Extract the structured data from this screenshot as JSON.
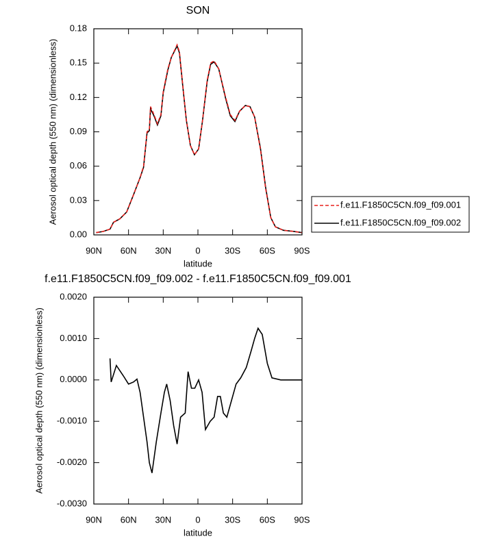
{
  "chart_data": [
    {
      "type": "line",
      "title": "SON",
      "xlabel": "latitude",
      "ylabel": "Aerosol optical depth (550 nm) (dimensionless)",
      "x": [
        88,
        82,
        76,
        73,
        67.5,
        61.6,
        55.7,
        50,
        47,
        44,
        42,
        41,
        38,
        35,
        32,
        30,
        26,
        23,
        18,
        16,
        13,
        10,
        6.5,
        3,
        -0.6,
        -4,
        -8,
        -11,
        -14,
        -18,
        -24,
        -28,
        -32,
        -36,
        -41,
        -45,
        -49,
        -54,
        -58.6,
        -63,
        -67,
        -74,
        -83,
        -90
      ],
      "series": [
        {
          "name": "f.e11.F1850C5CN.f09_f09.001",
          "color": "#e8201c",
          "dashed": true,
          "values": [
            0.002,
            0.003,
            0.005,
            0.011,
            0.014,
            0.02,
            0.035,
            0.05,
            0.06,
            0.09,
            0.092,
            0.112,
            0.105,
            0.097,
            0.105,
            0.125,
            0.145,
            0.155,
            0.166,
            0.16,
            0.13,
            0.1,
            0.078,
            0.07,
            0.075,
            0.1,
            0.135,
            0.15,
            0.152,
            0.145,
            0.12,
            0.105,
            0.1,
            0.108,
            0.113,
            0.112,
            0.103,
            0.075,
            0.04,
            0.015,
            0.007,
            0.004,
            0.003,
            0.002
          ]
        },
        {
          "name": "f.e11.F1850C5CN.f09_f09.002",
          "color": "#000000",
          "dashed": false,
          "values": [
            0.002,
            0.003,
            0.005,
            0.011,
            0.014,
            0.02,
            0.035,
            0.05,
            0.059,
            0.089,
            0.091,
            0.11,
            0.104,
            0.096,
            0.104,
            0.124,
            0.144,
            0.155,
            0.165,
            0.159,
            0.129,
            0.1,
            0.078,
            0.07,
            0.075,
            0.1,
            0.134,
            0.149,
            0.151,
            0.145,
            0.119,
            0.104,
            0.099,
            0.108,
            0.113,
            0.112,
            0.103,
            0.076,
            0.041,
            0.015,
            0.007,
            0.004,
            0.003,
            0.002
          ]
        }
      ],
      "xlim": [
        90,
        -90
      ],
      "xticks": [
        {
          "value": 90,
          "label": "90N"
        },
        {
          "value": 60,
          "label": "60N"
        },
        {
          "value": 30,
          "label": "30N"
        },
        0,
        {
          "value": -30,
          "label": "30S"
        },
        {
          "value": -60,
          "label": "60S"
        },
        {
          "value": -90,
          "label": "90S"
        }
      ],
      "ylim": [
        0,
        0.18
      ],
      "yticks": [
        {
          "value": 0,
          "label": "0.00"
        },
        0.03,
        0.06,
        0.09,
        0.12,
        0.15,
        0.18
      ],
      "legend": "right"
    },
    {
      "type": "line",
      "title": "f.e11.F1850C5CN.f09_f09.002 - f.e11.F1850C5CN.f09_f09.001",
      "xlabel": "latitude",
      "ylabel": "Aerosol optical depth (550 nm) (dimensionless)",
      "x": [
        76,
        75,
        70.5,
        64.5,
        60,
        55.7,
        52.7,
        50,
        47,
        44,
        42,
        39.7,
        36,
        32,
        29,
        27,
        24,
        21,
        18,
        15,
        11,
        8.5,
        5.6,
        2.7,
        -0.6,
        -3.6,
        -6.5,
        -10.6,
        -14,
        -17,
        -19.4,
        -22,
        -25,
        -29,
        -33,
        -37,
        -41.8,
        -46,
        -49,
        -52,
        -55.6,
        -60,
        -64,
        -71.6,
        -80.5,
        -90
      ],
      "values": [
        0.00052,
        -5e-05,
        0.00035,
        0.0001,
        -0.0001,
        -5e-05,
        2e-05,
        -0.0003,
        -0.0009,
        -0.0015,
        -0.002,
        -0.00225,
        -0.0015,
        -0.0008,
        -0.0003,
        -0.0001,
        -0.0005,
        -0.0011,
        -0.00155,
        -0.0009,
        -0.0008,
        0.0002,
        -0.0002,
        -0.0002,
        0,
        -0.0003,
        -0.0012,
        -0.001,
        -0.0009,
        -0.0004,
        -0.0004,
        -0.0008,
        -0.0009,
        -0.0005,
        -0.0001,
        5e-05,
        0.0003,
        0.0007,
        0.001,
        0.00125,
        0.0011,
        0.0004,
        5e-05,
        0,
        0,
        0
      ],
      "color": "#000000",
      "xlim": [
        90,
        -90
      ],
      "xticks": [
        {
          "value": 90,
          "label": "90N"
        },
        {
          "value": 60,
          "label": "60N"
        },
        {
          "value": 30,
          "label": "30N"
        },
        0,
        {
          "value": -30,
          "label": "30S"
        },
        {
          "value": -60,
          "label": "60S"
        },
        {
          "value": -90,
          "label": "90S"
        }
      ],
      "ylim": [
        -0.003,
        0.002
      ],
      "yticks": [
        {
          "value": -0.003,
          "label": "-0.0030"
        },
        {
          "value": -0.002,
          "label": "-0.0020"
        },
        {
          "value": -0.001,
          "label": "-0.0010"
        },
        {
          "value": 0,
          "label": "0.0000"
        },
        {
          "value": 0.001,
          "label": "0.0010"
        },
        {
          "value": 0.002,
          "label": "0.0020"
        }
      ]
    }
  ]
}
